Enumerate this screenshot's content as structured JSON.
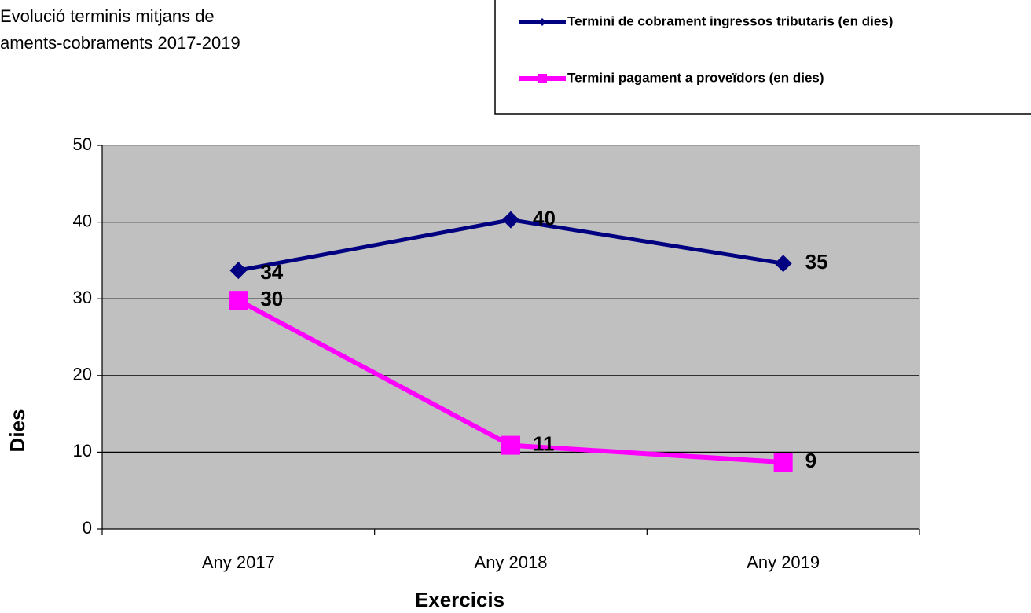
{
  "chart_data": {
    "type": "line",
    "title_lines": [
      "Evolució terminis mitjans de",
      "aments-cobraments 2017-2019"
    ],
    "x_label": "Exercicis",
    "y_label": "Dies",
    "categories": [
      "Any 2017",
      "Any 2018",
      "Any 2019"
    ],
    "series": [
      {
        "name": "Termini de cobrament ingressos tributaris (en dies)",
        "color": "#000080",
        "marker": "diamond",
        "values": [
          33.7,
          40.3,
          34.6
        ],
        "value_labels": [
          "34",
          "40",
          "35"
        ]
      },
      {
        "name": "Termini pagament a proveïdors (en dies)",
        "color": "#ff00ff",
        "marker": "square",
        "values": [
          29.8,
          10.9,
          8.7
        ],
        "value_labels": [
          "30",
          "11",
          "9"
        ]
      }
    ],
    "ylim": [
      0,
      50
    ],
    "yticks": [
      0,
      10,
      20,
      30,
      40,
      50
    ],
    "grid": true,
    "plot_background": "#c0c0c0",
    "legend": "top-right"
  }
}
